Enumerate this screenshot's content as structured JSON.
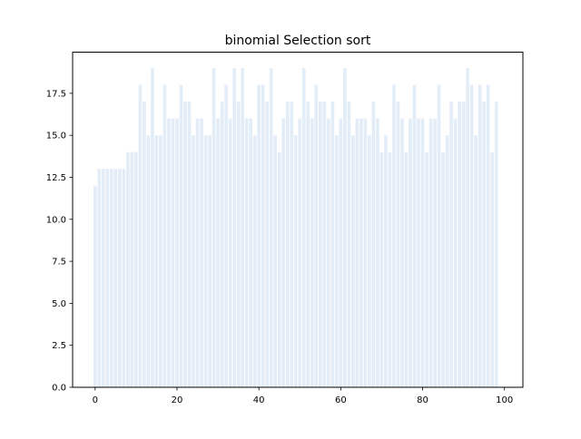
{
  "chart_data": {
    "type": "bar",
    "title": "binomial Selection sort",
    "xlabel": "",
    "ylabel": "",
    "xlim": [
      -5.5,
      104.5
    ],
    "ylim": [
      0,
      19.95
    ],
    "x_ticks": [
      0,
      20,
      40,
      60,
      80,
      100
    ],
    "x_tick_labels": [
      "0",
      "20",
      "40",
      "60",
      "80",
      "100"
    ],
    "y_ticks": [
      0,
      2.5,
      5,
      7.5,
      10,
      12.5,
      15,
      17.5
    ],
    "y_tick_labels": [
      "0.0",
      "2.5",
      "5.0",
      "7.5",
      "10.0",
      "12.5",
      "15.0",
      "17.5"
    ],
    "grid": false,
    "bar_color": "#e3edf7",
    "x": [
      0,
      1,
      2,
      3,
      4,
      5,
      6,
      7,
      8,
      9,
      10,
      11,
      12,
      13,
      14,
      15,
      16,
      17,
      18,
      19,
      20,
      21,
      22,
      23,
      24,
      25,
      26,
      27,
      28,
      29,
      30,
      31,
      32,
      33,
      34,
      35,
      36,
      37,
      38,
      39,
      40,
      41,
      42,
      43,
      44,
      45,
      46,
      47,
      48,
      49,
      50,
      51,
      52,
      53,
      54,
      55,
      56,
      57,
      58,
      59,
      60,
      61,
      62,
      63,
      64,
      65,
      66,
      67,
      68,
      69,
      70,
      71,
      72,
      73,
      74,
      75,
      76,
      77,
      78,
      79,
      80,
      81,
      82,
      83,
      84,
      85,
      86,
      87,
      88,
      89,
      90,
      91,
      92,
      93,
      94,
      95,
      96,
      97,
      98,
      99
    ],
    "values": [
      12,
      13,
      13,
      13,
      13,
      13,
      13,
      13,
      14,
      14,
      14,
      18,
      17,
      15,
      19,
      15,
      15,
      18,
      16,
      16,
      16,
      18,
      17,
      17,
      15,
      16,
      16,
      15,
      15,
      19,
      16,
      17,
      18,
      16,
      19,
      17,
      19,
      16,
      16,
      15,
      18,
      18,
      17,
      19,
      15,
      14,
      16,
      17,
      17,
      15,
      16,
      19,
      17,
      16,
      18,
      17,
      17,
      16,
      17,
      15,
      16,
      19,
      17,
      15,
      16,
      16,
      16,
      15,
      17,
      16,
      14,
      15,
      14,
      18,
      17,
      16,
      14,
      16,
      18,
      16,
      16,
      14,
      16,
      16,
      18,
      14,
      15,
      17,
      16,
      17,
      17,
      19,
      18,
      15,
      18,
      17,
      18,
      14,
      17,
      0
    ]
  }
}
